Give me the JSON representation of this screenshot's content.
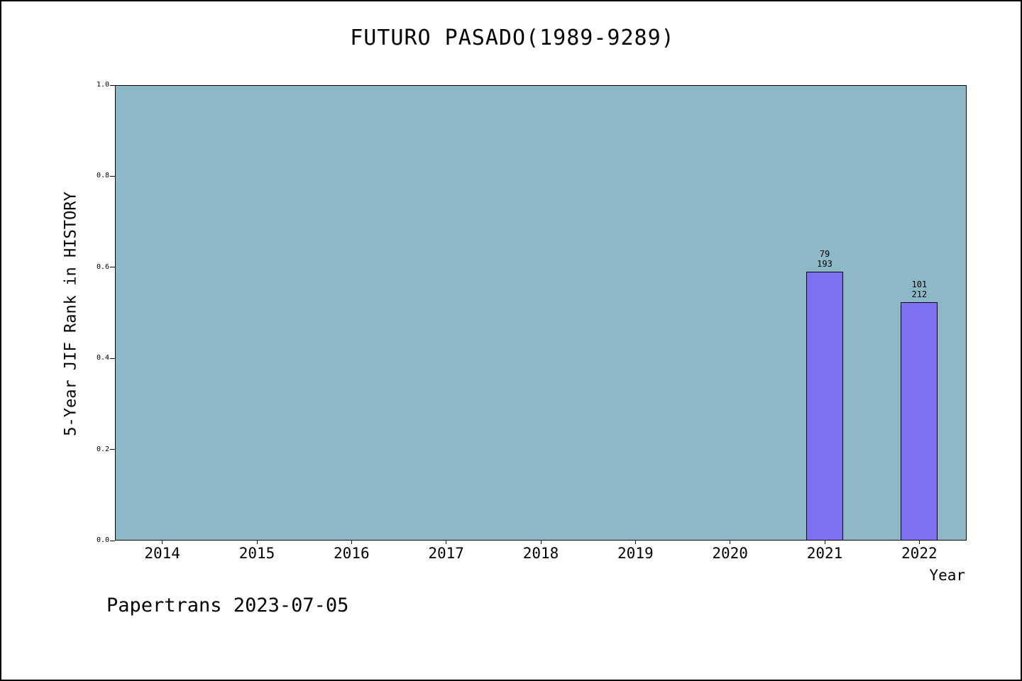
{
  "footer": "Papertrans 2023-07-05",
  "chart_data": {
    "type": "bar",
    "title": "FUTURO PASADO(1989-9289)",
    "xlabel": "Year",
    "ylabel": "5-Year JIF Rank in HISTORY",
    "categories": [
      "2014",
      "2015",
      "2016",
      "2017",
      "2018",
      "2019",
      "2020",
      "2021",
      "2022"
    ],
    "values": [
      null,
      null,
      null,
      null,
      null,
      null,
      null,
      0.591,
      0.524
    ],
    "bar_annotations": [
      null,
      null,
      null,
      null,
      null,
      null,
      null,
      [
        "79",
        "193"
      ],
      [
        "101",
        "212"
      ]
    ],
    "ylim": [
      0,
      1
    ],
    "ytick_labels": [
      "0.0",
      "0.2",
      "0.4",
      "0.6",
      "0.8",
      "1.0"
    ],
    "grid": false,
    "legend": null,
    "colors": {
      "plot_background": "#8db8c8",
      "bar_fill": "#7e70f0",
      "bar_border": "#000000",
      "text": "#000000",
      "figure_background": "#ffffff"
    }
  }
}
